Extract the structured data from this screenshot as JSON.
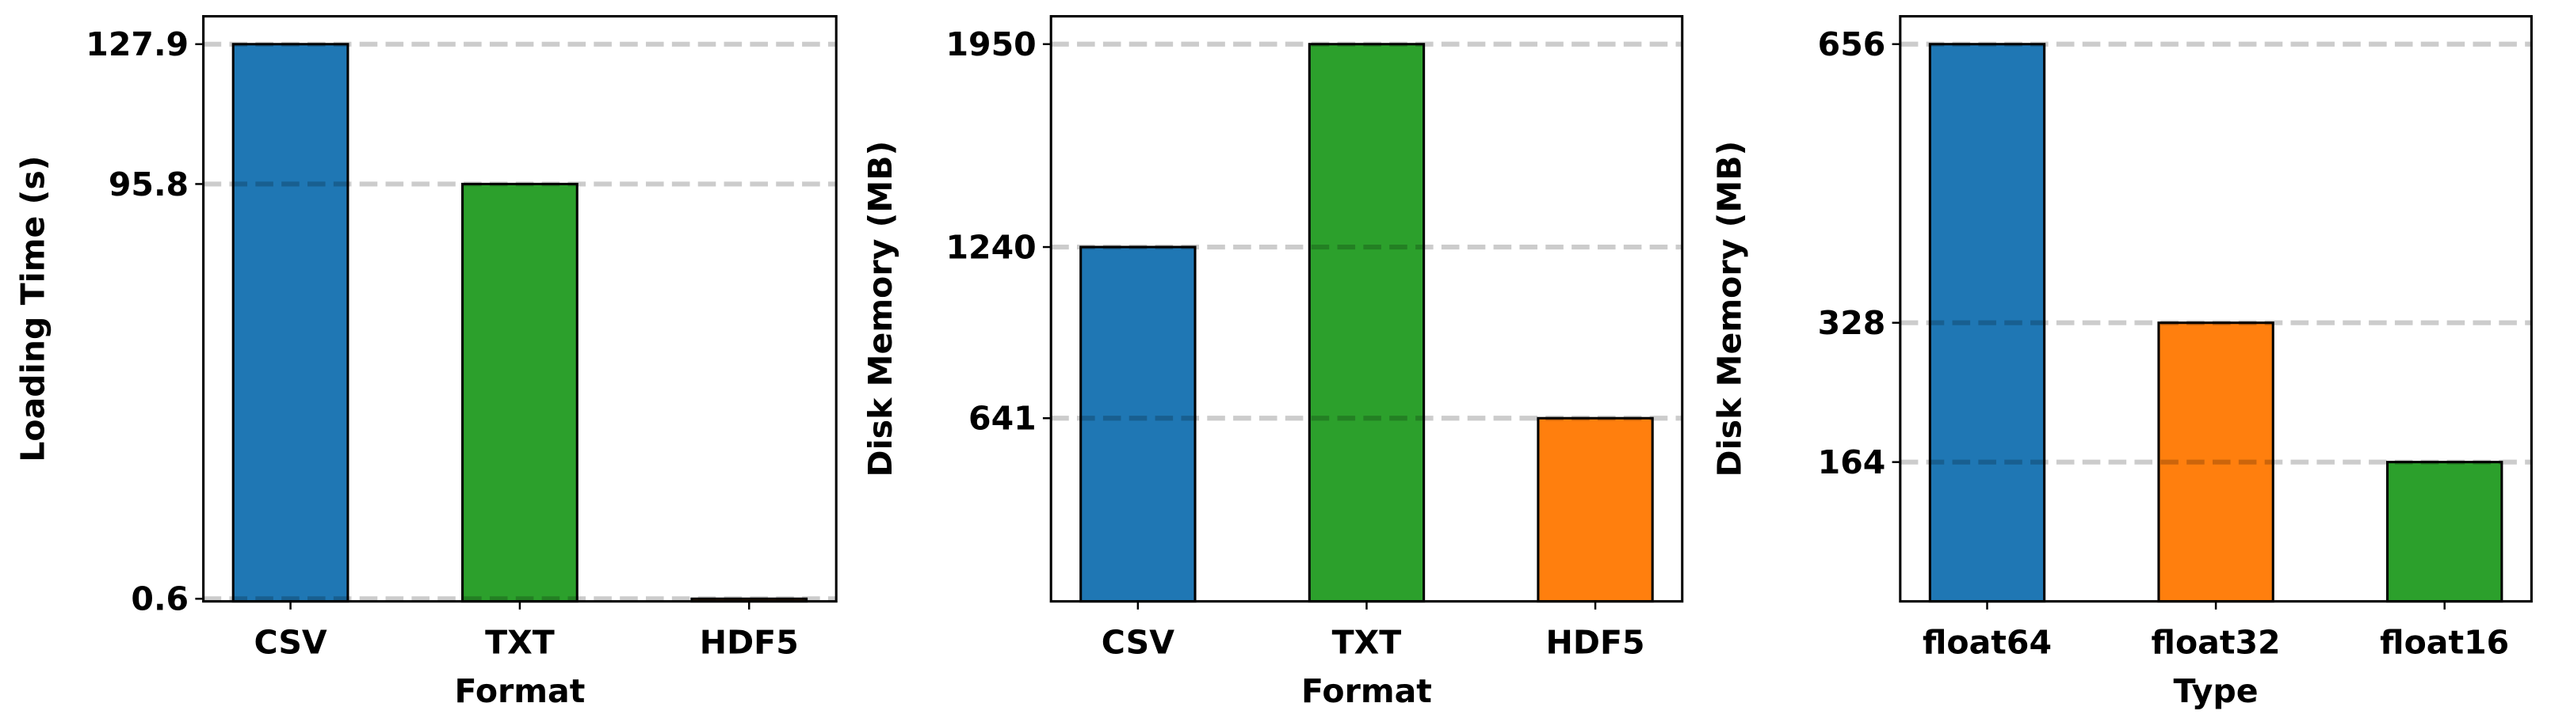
{
  "chart_data": [
    {
      "type": "bar",
      "xlabel": "Format",
      "ylabel": "Loading Time (s)",
      "categories": [
        "CSV",
        "TXT",
        "HDF5"
      ],
      "values": [
        127.9,
        95.8,
        0.6
      ],
      "colors": [
        "#1f77b4",
        "#2ca02c",
        "#ff7f0e"
      ],
      "ylim": [
        0,
        134.3
      ],
      "yticks": [
        0.6,
        95.8,
        127.9
      ],
      "grid": true
    },
    {
      "type": "bar",
      "xlabel": "Format",
      "ylabel": "Disk Memory (MB)",
      "categories": [
        "CSV",
        "TXT",
        "HDF5"
      ],
      "values": [
        1240,
        1950,
        641
      ],
      "colors": [
        "#1f77b4",
        "#2ca02c",
        "#ff7f0e"
      ],
      "ylim": [
        0,
        2047.5
      ],
      "yticks": [
        641,
        1240,
        1950
      ],
      "grid": true
    },
    {
      "type": "bar",
      "xlabel": "Type",
      "ylabel": "Disk Memory (MB)",
      "categories": [
        "float64",
        "float32",
        "float16"
      ],
      "values": [
        656,
        328,
        164
      ],
      "colors": [
        "#1f77b4",
        "#ff7f0e",
        "#2ca02c"
      ],
      "ylim": [
        0,
        688.8
      ],
      "yticks": [
        164,
        328,
        656
      ],
      "grid": true
    }
  ]
}
